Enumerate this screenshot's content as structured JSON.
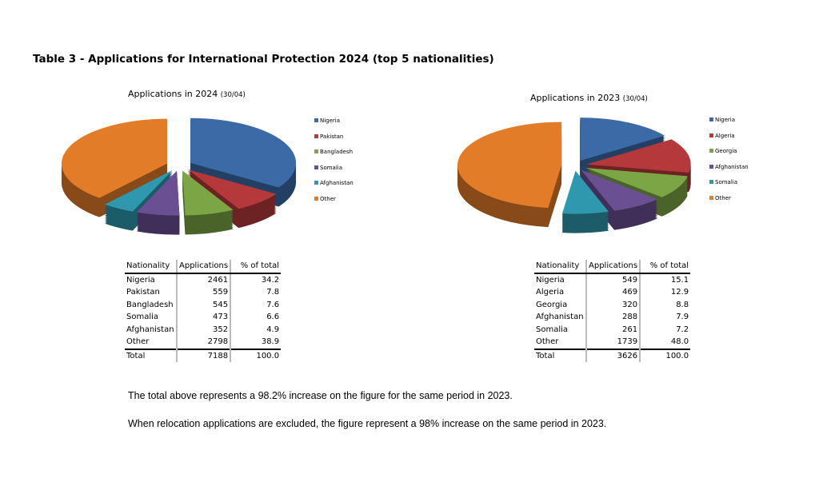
{
  "title": "Table 3 - Applications for International Protection 2024 (top 5 nationalities)",
  "charts": [
    {
      "title": "Applications in 2024",
      "title_note": "(30/04)",
      "headers": [
        "Nationality",
        "Applications",
        "% of total"
      ],
      "rows": [
        [
          "Nigeria",
          "2461",
          "34.2"
        ],
        [
          "Pakistan",
          "559",
          "7.8"
        ],
        [
          "Bangladesh",
          "545",
          "7.6"
        ],
        [
          "Somalia",
          "473",
          "6.6"
        ],
        [
          "Afghanistan",
          "352",
          "4.9"
        ],
        [
          "Other",
          "2798",
          "38.9"
        ]
      ],
      "total": [
        "Total",
        "7188",
        "100.0"
      ],
      "colors": [
        "#3b6aa6",
        "#b5393a",
        "#7ca545",
        "#6b4f93",
        "#2f98ae",
        "#e27c28"
      ]
    },
    {
      "title": "Applications in 2023",
      "title_note": "(30/04)",
      "headers": [
        "Nationality",
        "Applications",
        "% of total"
      ],
      "rows": [
        [
          "Nigeria",
          "549",
          "15.1"
        ],
        [
          "Algeria",
          "469",
          "12.9"
        ],
        [
          "Georgia",
          "320",
          "8.8"
        ],
        [
          "Afghanistan",
          "288",
          "7.9"
        ],
        [
          "Somalia",
          "261",
          "7.2"
        ],
        [
          "Other",
          "1739",
          "48.0"
        ]
      ],
      "total": [
        "Total",
        "3626",
        "100.0"
      ],
      "colors": [
        "#3b6aa6",
        "#b5393a",
        "#7ca545",
        "#6b4f93",
        "#2f98ae",
        "#e27c28"
      ]
    }
  ],
  "chart_data": [
    {
      "type": "pie",
      "title": "Applications in 2024 (30/04)",
      "categories": [
        "Nigeria",
        "Pakistan",
        "Bangladesh",
        "Somalia",
        "Afghanistan",
        "Other"
      ],
      "values": [
        2461,
        559,
        545,
        473,
        352,
        2798
      ],
      "legend": "right"
    },
    {
      "type": "pie",
      "title": "Applications in 2023 (30/04)",
      "categories": [
        "Nigeria",
        "Algeria",
        "Georgia",
        "Afghanistan",
        "Somalia",
        "Other"
      ],
      "values": [
        549,
        469,
        320,
        288,
        261,
        1739
      ],
      "legend": "right"
    }
  ],
  "notes": [
    "The total above represents a 98.2% increase on the figure for the same period in 2023.",
    "When relocation applications are excluded, the figure represent a 98% increase on the same period in 2023."
  ]
}
